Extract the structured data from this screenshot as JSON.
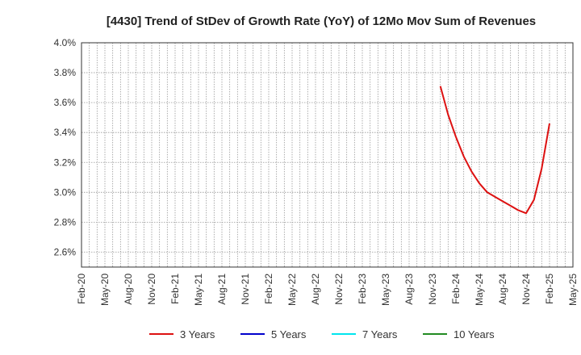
{
  "chart_data": {
    "type": "line",
    "title": "[4430]  Trend of StDev of Growth Rate (YoY) of 12Mo Mov Sum of Revenues",
    "xlabel": "",
    "ylabel": "",
    "ylim": [
      2.5,
      4.0
    ],
    "y_ticks": [
      "4.0%",
      "3.8%",
      "3.6%",
      "3.4%",
      "3.2%",
      "3.0%",
      "2.8%",
      "2.6%"
    ],
    "y_tick_values": [
      4.0,
      3.8,
      3.6,
      3.4,
      3.2,
      3.0,
      2.8,
      2.6
    ],
    "x_ticks": [
      "Feb-20",
      "May-20",
      "Aug-20",
      "Nov-20",
      "Feb-21",
      "May-21",
      "Aug-21",
      "Nov-21",
      "Feb-22",
      "May-22",
      "Aug-22",
      "Nov-22",
      "Feb-23",
      "May-23",
      "Aug-23",
      "Nov-23",
      "Feb-24",
      "May-24",
      "Aug-24",
      "Nov-24",
      "Feb-25",
      "May-25"
    ],
    "grid": true,
    "legend_position": "bottom",
    "series": [
      {
        "name": "3 Years",
        "color": "#dd1111",
        "x": [
          "Dec-23",
          "Jan-24",
          "Feb-24",
          "Mar-24",
          "Apr-24",
          "May-24",
          "Jun-24",
          "Jul-24",
          "Aug-24",
          "Sep-24",
          "Oct-24",
          "Nov-24",
          "Dec-24",
          "Jan-25",
          "Feb-25"
        ],
        "values": [
          3.71,
          3.52,
          3.37,
          3.24,
          3.14,
          3.06,
          3.0,
          2.97,
          2.94,
          2.91,
          2.88,
          2.86,
          2.95,
          3.16,
          3.46
        ]
      },
      {
        "name": "5 Years",
        "color": "#0000cc",
        "x": [],
        "values": []
      },
      {
        "name": "7 Years",
        "color": "#00e5ee",
        "x": [],
        "values": []
      },
      {
        "name": "10 Years",
        "color": "#228b22",
        "x": [],
        "values": []
      }
    ]
  }
}
